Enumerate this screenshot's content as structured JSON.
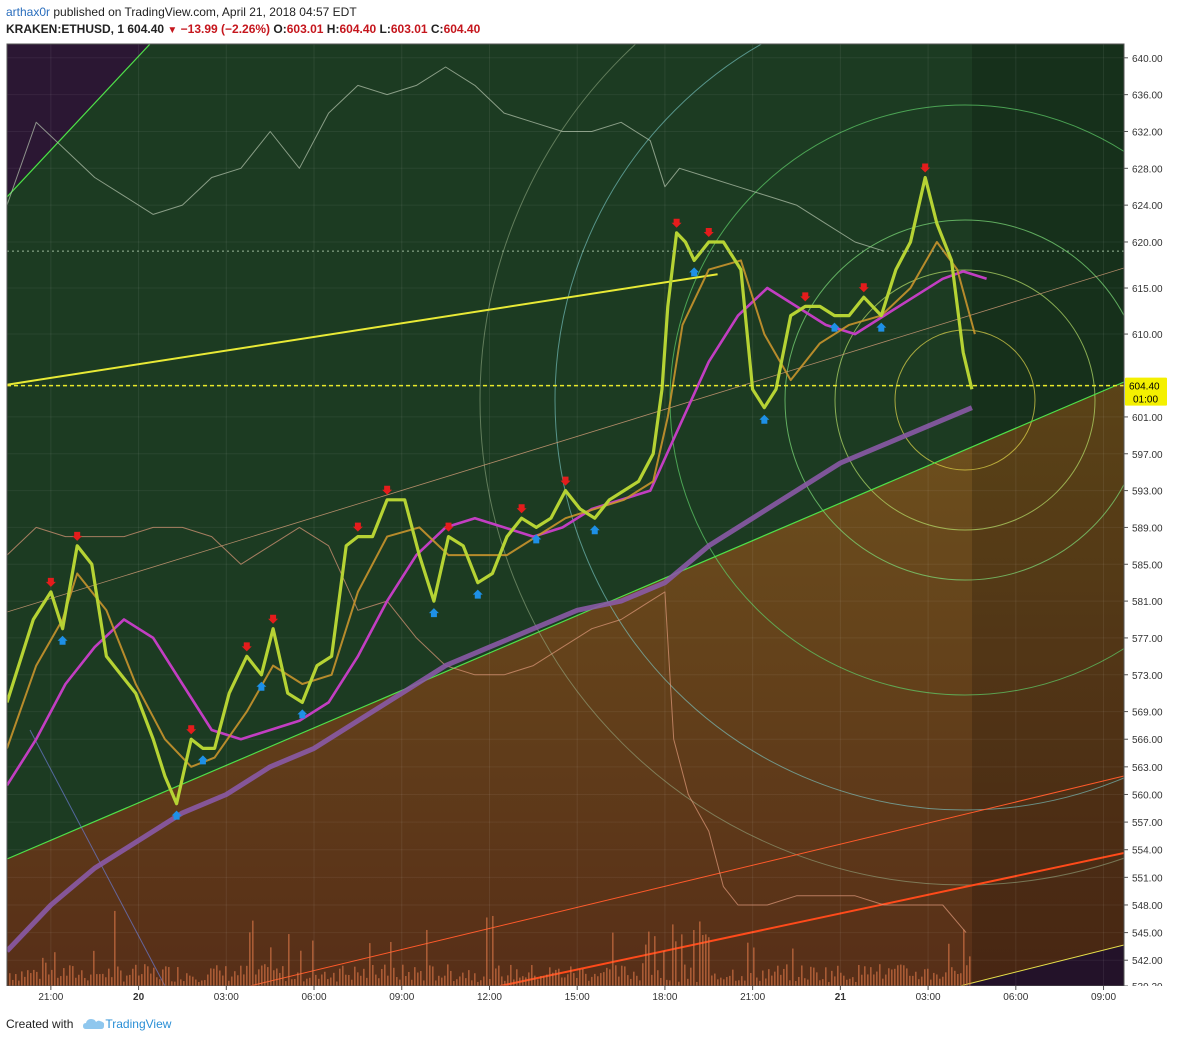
{
  "header": {
    "author": "arthax0r",
    "published_text": " published on TradingView.com, April 21, 2018 04:57 EDT",
    "symbol": "KRAKEN:ETHUSD, 1",
    "last": "604.40",
    "change": "−13.99 (−2.26%)",
    "o_label": "O:",
    "o_val": "603.01",
    "h_label": "H:",
    "h_val": "604.40",
    "l_label": "L:",
    "l_val": "603.01",
    "c_label": "C:",
    "c_val": "604.40"
  },
  "footer": {
    "created_with": "Created with",
    "brand": "TradingView"
  },
  "colors": {
    "bg_green": "#1c3b22",
    "bg_purple": "#2b1733",
    "bg_orange": "#6b3317",
    "price": "#b6d334",
    "ema": "#c9952c",
    "ma_purple": "#c23ec2",
    "ma_wide": "#8a5aa6",
    "up_arrow": "#1e90e6",
    "down_arrow": "#e51c1c",
    "yellow_line": "#e8ea36",
    "price_label_bg": "#f4f000"
  },
  "chart_data": {
    "type": "line",
    "title": "",
    "xlabel": "",
    "ylabel": "",
    "ylim": [
      539.2,
      641.5
    ],
    "yticks": [
      "640.00",
      "636.00",
      "632.00",
      "628.00",
      "624.00",
      "620.00",
      "615.00",
      "610.00",
      "604.40",
      "601.00",
      "597.00",
      "593.00",
      "589.00",
      "585.00",
      "581.00",
      "577.00",
      "573.00",
      "569.00",
      "566.00",
      "563.00",
      "560.00",
      "557.00",
      "554.00",
      "551.00",
      "548.00",
      "545.00",
      "542.00",
      "539.20"
    ],
    "current_price": 604.4,
    "countdown": "01:00",
    "x_hours_start": -4.5,
    "x_hours_end": 33.7,
    "xticks": [
      {
        "label": "21:00",
        "h": -3
      },
      {
        "label": "20",
        "h": 0,
        "bold": true
      },
      {
        "label": "03:00",
        "h": 3
      },
      {
        "label": "06:00",
        "h": 6
      },
      {
        "label": "09:00",
        "h": 9
      },
      {
        "label": "12:00",
        "h": 12
      },
      {
        "label": "15:00",
        "h": 15
      },
      {
        "label": "18:00",
        "h": 18
      },
      {
        "label": "21:00",
        "h": 21
      },
      {
        "label": "21",
        "h": 24,
        "bold": true
      },
      {
        "label": "03:00",
        "h": 27
      },
      {
        "label": "06:00",
        "h": 30
      },
      {
        "label": "09:00",
        "h": 33
      }
    ],
    "series": [
      {
        "key": "price",
        "points": [
          [
            -4.5,
            570
          ],
          [
            -3.6,
            579
          ],
          [
            -3.0,
            582
          ],
          [
            -2.6,
            578
          ],
          [
            -2.1,
            587
          ],
          [
            -1.6,
            585
          ],
          [
            -1.1,
            575
          ],
          [
            -0.6,
            573
          ],
          [
            -0.1,
            571
          ],
          [
            0.5,
            566
          ],
          [
            0.9,
            562
          ],
          [
            1.3,
            559
          ],
          [
            1.8,
            566
          ],
          [
            2.2,
            565
          ],
          [
            2.6,
            565
          ],
          [
            3.1,
            571
          ],
          [
            3.7,
            575
          ],
          [
            4.2,
            573
          ],
          [
            4.6,
            578
          ],
          [
            5.1,
            571
          ],
          [
            5.6,
            570
          ],
          [
            6.1,
            574
          ],
          [
            6.6,
            575
          ],
          [
            7.1,
            587
          ],
          [
            7.5,
            588
          ],
          [
            8.0,
            588
          ],
          [
            8.5,
            592
          ],
          [
            9.1,
            592
          ],
          [
            9.6,
            586
          ],
          [
            10.1,
            581
          ],
          [
            10.6,
            588
          ],
          [
            11.1,
            587
          ],
          [
            11.6,
            583
          ],
          [
            12.1,
            584
          ],
          [
            12.6,
            588
          ],
          [
            13.1,
            590
          ],
          [
            13.6,
            589
          ],
          [
            14.1,
            590
          ],
          [
            14.6,
            593
          ],
          [
            15.1,
            591
          ],
          [
            15.6,
            590
          ],
          [
            16.1,
            592
          ],
          [
            16.6,
            593
          ],
          [
            17.1,
            594
          ],
          [
            17.6,
            597
          ],
          [
            17.9,
            604
          ],
          [
            18.1,
            613
          ],
          [
            18.4,
            621
          ],
          [
            18.7,
            620
          ],
          [
            19.0,
            618
          ],
          [
            19.5,
            620
          ],
          [
            20.0,
            620
          ],
          [
            20.6,
            617
          ],
          [
            21.0,
            604
          ],
          [
            21.4,
            602
          ],
          [
            21.8,
            604
          ],
          [
            22.3,
            612
          ],
          [
            22.8,
            613
          ],
          [
            23.3,
            613
          ],
          [
            23.8,
            612
          ],
          [
            24.3,
            612
          ],
          [
            24.8,
            614
          ],
          [
            25.4,
            612
          ],
          [
            25.9,
            617
          ],
          [
            26.4,
            620
          ],
          [
            26.9,
            627
          ],
          [
            27.3,
            622
          ],
          [
            27.8,
            618
          ],
          [
            28.2,
            608
          ],
          [
            28.5,
            604
          ]
        ]
      },
      {
        "key": "ema",
        "points": [
          [
            -4.5,
            565
          ],
          [
            -3.5,
            574
          ],
          [
            -2.6,
            579
          ],
          [
            -2.1,
            584
          ],
          [
            -1.1,
            580
          ],
          [
            -0.1,
            572
          ],
          [
            0.9,
            566
          ],
          [
            1.8,
            563
          ],
          [
            2.6,
            564
          ],
          [
            3.7,
            569
          ],
          [
            4.6,
            574
          ],
          [
            5.6,
            572
          ],
          [
            6.6,
            573
          ],
          [
            7.5,
            582
          ],
          [
            8.5,
            588
          ],
          [
            9.6,
            589
          ],
          [
            10.6,
            586
          ],
          [
            11.6,
            586
          ],
          [
            12.6,
            586
          ],
          [
            13.6,
            588
          ],
          [
            14.6,
            590
          ],
          [
            15.6,
            591
          ],
          [
            16.6,
            592
          ],
          [
            17.6,
            594
          ],
          [
            18.1,
            601
          ],
          [
            18.6,
            611
          ],
          [
            19.5,
            617
          ],
          [
            20.6,
            618
          ],
          [
            21.4,
            610
          ],
          [
            22.3,
            605
          ],
          [
            23.3,
            609
          ],
          [
            24.3,
            611
          ],
          [
            25.4,
            612
          ],
          [
            26.4,
            615
          ],
          [
            27.3,
            620
          ],
          [
            28.0,
            617
          ],
          [
            28.6,
            610
          ]
        ]
      },
      {
        "key": "ma_purple",
        "points": [
          [
            -4.5,
            561
          ],
          [
            -3.5,
            566
          ],
          [
            -2.5,
            572
          ],
          [
            -1.5,
            576
          ],
          [
            -0.5,
            579
          ],
          [
            0.5,
            577
          ],
          [
            1.5,
            572
          ],
          [
            2.5,
            567
          ],
          [
            3.5,
            566
          ],
          [
            4.5,
            567
          ],
          [
            5.5,
            568
          ],
          [
            6.5,
            570
          ],
          [
            7.5,
            575
          ],
          [
            8.5,
            581
          ],
          [
            9.5,
            586
          ],
          [
            10.5,
            589
          ],
          [
            11.5,
            590
          ],
          [
            12.5,
            589
          ],
          [
            13.5,
            588
          ],
          [
            14.5,
            589
          ],
          [
            15.5,
            591
          ],
          [
            16.5,
            592
          ],
          [
            17.5,
            593
          ],
          [
            18.5,
            600
          ],
          [
            19.5,
            607
          ],
          [
            20.5,
            612
          ],
          [
            21.5,
            615
          ],
          [
            22.5,
            613
          ],
          [
            23.5,
            611
          ],
          [
            24.5,
            610
          ],
          [
            25.5,
            612
          ],
          [
            26.5,
            614
          ],
          [
            27.5,
            616
          ],
          [
            28.2,
            616.8
          ],
          [
            29.0,
            616
          ]
        ]
      },
      {
        "key": "ma_wide",
        "points": [
          [
            -4.5,
            543
          ],
          [
            -3,
            548
          ],
          [
            -1.5,
            552
          ],
          [
            0,
            555
          ],
          [
            1.5,
            558
          ],
          [
            3,
            560
          ],
          [
            4.5,
            563
          ],
          [
            6,
            565
          ],
          [
            7.5,
            568
          ],
          [
            9,
            571
          ],
          [
            10.5,
            574
          ],
          [
            12,
            576
          ],
          [
            13.5,
            578
          ],
          [
            15,
            580
          ],
          [
            16.5,
            581
          ],
          [
            18,
            583
          ],
          [
            19.5,
            587
          ],
          [
            21,
            590
          ],
          [
            22.5,
            593
          ],
          [
            24,
            596
          ],
          [
            25.5,
            598
          ],
          [
            27,
            600
          ],
          [
            28.5,
            602
          ]
        ]
      },
      {
        "key": "cmp",
        "points": [
          [
            -4.5,
            624
          ],
          [
            -3.5,
            633
          ],
          [
            -2.5,
            630
          ],
          [
            -1.5,
            627
          ],
          [
            -0.5,
            625
          ],
          [
            0.5,
            623
          ],
          [
            1.5,
            624
          ],
          [
            2.5,
            627
          ],
          [
            3.5,
            628
          ],
          [
            4.5,
            632
          ],
          [
            5.5,
            628
          ],
          [
            6.5,
            634
          ],
          [
            7.5,
            637
          ],
          [
            8.5,
            636
          ],
          [
            9.5,
            637
          ],
          [
            10.5,
            639
          ],
          [
            11.5,
            637
          ],
          [
            12.5,
            634
          ],
          [
            13.5,
            633
          ],
          [
            14.5,
            632
          ],
          [
            15.5,
            632
          ],
          [
            16.5,
            633
          ],
          [
            17.5,
            631
          ],
          [
            18.0,
            626
          ],
          [
            18.5,
            628
          ],
          [
            19.5,
            627
          ],
          [
            20.5,
            626
          ],
          [
            21.5,
            625
          ],
          [
            22.5,
            624
          ],
          [
            23.5,
            622
          ],
          [
            24.5,
            620
          ],
          [
            25.5,
            619
          ]
        ]
      },
      {
        "key": "cmp_low",
        "points": [
          [
            -4.5,
            586
          ],
          [
            -3.5,
            589
          ],
          [
            -2.5,
            588
          ],
          [
            -1.5,
            588
          ],
          [
            -0.5,
            588
          ],
          [
            0.5,
            589
          ],
          [
            1.5,
            589
          ],
          [
            2.5,
            588
          ],
          [
            3.5,
            585
          ],
          [
            4.5,
            587
          ],
          [
            5.5,
            589
          ],
          [
            6.5,
            587
          ],
          [
            7.5,
            580
          ],
          [
            8.5,
            581
          ],
          [
            9.5,
            577
          ],
          [
            10.5,
            574
          ],
          [
            11.5,
            573
          ],
          [
            12.5,
            573
          ],
          [
            13.5,
            574
          ],
          [
            14.5,
            576
          ],
          [
            15.5,
            578
          ],
          [
            16.5,
            579
          ],
          [
            17.5,
            581
          ],
          [
            18.0,
            582
          ],
          [
            18.3,
            566
          ],
          [
            18.8,
            560
          ],
          [
            19.5,
            556
          ],
          [
            20.0,
            550
          ],
          [
            20.5,
            548
          ],
          [
            21.5,
            548
          ],
          [
            22.5,
            549
          ],
          [
            23.5,
            549
          ],
          [
            24.5,
            549
          ],
          [
            25.5,
            548
          ],
          [
            26.5,
            548
          ],
          [
            27.5,
            548
          ],
          [
            28.3,
            545
          ]
        ]
      },
      {
        "key": "yellow_line",
        "points": [
          [
            -4.5,
            604.5
          ],
          [
            19.8,
            616.5
          ]
        ]
      }
    ],
    "horizontal_lines": [
      619.0,
      604.4
    ],
    "current_time_h": 28.5
  }
}
